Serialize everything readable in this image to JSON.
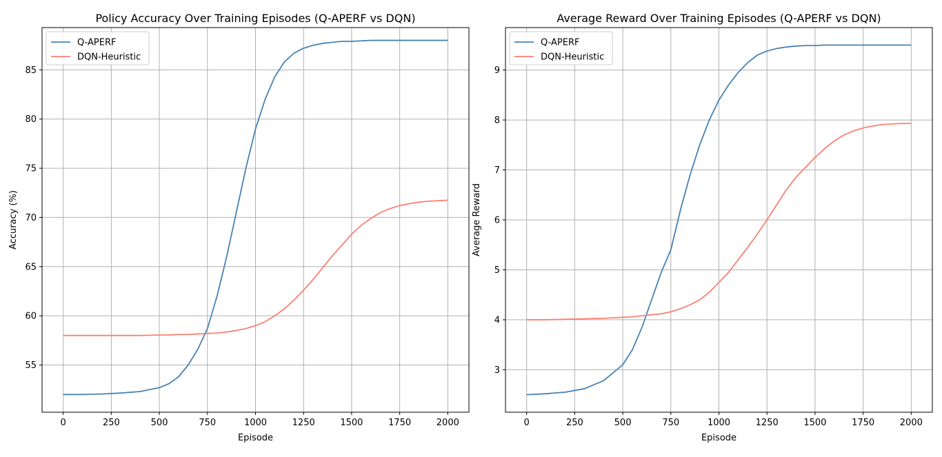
{
  "chart_data": [
    {
      "type": "line",
      "title": "Policy Accuracy Over Training Episodes (Q-APERF vs DQN)",
      "xlabel": "Episode",
      "ylabel": "Accuracy (%)",
      "xlim": [
        -110,
        2110
      ],
      "ylim": [
        50.2,
        89.3
      ],
      "xticks": [
        0,
        250,
        500,
        750,
        1000,
        1250,
        1500,
        1750,
        2000
      ],
      "yticks": [
        55,
        60,
        65,
        70,
        75,
        80,
        85
      ],
      "grid": true,
      "legend": "top-left",
      "x": [
        0,
        100,
        200,
        300,
        400,
        500,
        550,
        600,
        650,
        700,
        750,
        800,
        850,
        900,
        950,
        1000,
        1050,
        1100,
        1150,
        1200,
        1250,
        1300,
        1350,
        1400,
        1450,
        1500,
        1550,
        1600,
        1650,
        1700,
        1750,
        1800,
        1850,
        1900,
        1950,
        2000
      ],
      "series": [
        {
          "name": "Q-APERF",
          "color": "#4682b4",
          "values": [
            52.0,
            52.0,
            52.05,
            52.15,
            52.3,
            52.7,
            53.1,
            53.8,
            55.0,
            56.6,
            58.7,
            62.0,
            66.0,
            70.5,
            75.0,
            79.0,
            82.0,
            84.3,
            85.8,
            86.7,
            87.2,
            87.5,
            87.7,
            87.8,
            87.9,
            87.9,
            87.95,
            88.0,
            88.0,
            88.0,
            88.0,
            88.0,
            88.0,
            88.0,
            88.0,
            88.0
          ]
        },
        {
          "name": "DQN-Heuristic",
          "color": "#fa8072",
          "values": [
            58.0,
            58.0,
            58.0,
            58.0,
            58.0,
            58.05,
            58.05,
            58.1,
            58.1,
            58.15,
            58.2,
            58.25,
            58.35,
            58.5,
            58.7,
            59.0,
            59.4,
            60.0,
            60.7,
            61.6,
            62.6,
            63.7,
            64.9,
            66.1,
            67.2,
            68.3,
            69.2,
            69.9,
            70.5,
            70.9,
            71.2,
            71.4,
            71.55,
            71.65,
            71.7,
            71.75
          ]
        }
      ]
    },
    {
      "type": "line",
      "title": "Average Reward Over Training Episodes (Q-APERF vs DQN)",
      "xlabel": "Episode",
      "ylabel": "Average Reward",
      "xlim": [
        -110,
        2110
      ],
      "ylim": [
        2.15,
        9.85
      ],
      "xticks": [
        0,
        250,
        500,
        750,
        1000,
        1250,
        1500,
        1750,
        2000
      ],
      "yticks": [
        3,
        4,
        5,
        6,
        7,
        8,
        9
      ],
      "grid": true,
      "legend": "top-left",
      "x": [
        0,
        100,
        200,
        300,
        400,
        500,
        550,
        600,
        650,
        700,
        750,
        800,
        850,
        900,
        950,
        1000,
        1050,
        1100,
        1150,
        1200,
        1250,
        1300,
        1350,
        1400,
        1450,
        1500,
        1550,
        1600,
        1650,
        1700,
        1750,
        1800,
        1850,
        1900,
        1950,
        2000
      ],
      "series": [
        {
          "name": "Q-APERF",
          "color": "#4682b4",
          "values": [
            2.5,
            2.52,
            2.55,
            2.62,
            2.78,
            3.1,
            3.4,
            3.85,
            4.4,
            4.95,
            5.4,
            6.2,
            6.9,
            7.5,
            8.0,
            8.4,
            8.7,
            8.95,
            9.15,
            9.3,
            9.38,
            9.43,
            9.46,
            9.48,
            9.49,
            9.49,
            9.5,
            9.5,
            9.5,
            9.5,
            9.5,
            9.5,
            9.5,
            9.5,
            9.5,
            9.5
          ]
        },
        {
          "name": "DQN-Heuristic",
          "color": "#fa8072",
          "values": [
            4.0,
            4.0,
            4.01,
            4.02,
            4.03,
            4.05,
            4.06,
            4.08,
            4.1,
            4.12,
            4.16,
            4.22,
            4.3,
            4.4,
            4.55,
            4.75,
            4.95,
            5.2,
            5.45,
            5.72,
            6.0,
            6.3,
            6.6,
            6.85,
            7.05,
            7.25,
            7.43,
            7.58,
            7.7,
            7.78,
            7.84,
            7.88,
            7.91,
            7.92,
            7.93,
            7.93
          ]
        }
      ]
    }
  ]
}
